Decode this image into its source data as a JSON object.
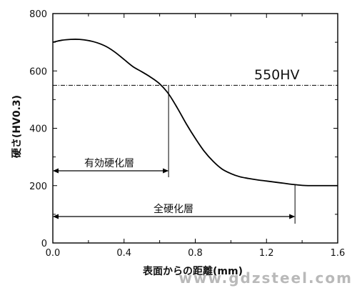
{
  "chart_data": {
    "type": "line",
    "title": "",
    "xlabel": "表面からの距離(mm)",
    "ylabel": "硬さ(HV0.3)",
    "xlim": [
      0.0,
      1.6
    ],
    "ylim": [
      0,
      800
    ],
    "x_ticks": [
      "0.0",
      "0.4",
      "0.8",
      "1.2",
      "1.6"
    ],
    "y_ticks": [
      "0",
      "200",
      "400",
      "600",
      "800"
    ],
    "x": [
      0.0,
      0.05,
      0.1,
      0.15,
      0.2,
      0.25,
      0.3,
      0.35,
      0.4,
      0.45,
      0.5,
      0.55,
      0.6,
      0.65,
      0.7,
      0.75,
      0.8,
      0.85,
      0.9,
      0.95,
      1.0,
      1.05,
      1.1,
      1.15,
      1.2,
      1.25,
      1.3,
      1.35,
      1.4,
      1.45,
      1.5,
      1.55,
      1.6
    ],
    "values": [
      700,
      707,
      710,
      710,
      706,
      698,
      685,
      665,
      640,
      615,
      597,
      578,
      555,
      520,
      470,
      415,
      365,
      320,
      285,
      258,
      242,
      231,
      225,
      220,
      216,
      212,
      208,
      204,
      201,
      200,
      200,
      200,
      200
    ],
    "reference_line": {
      "y": 550,
      "label": "550HV"
    },
    "effective_depth": {
      "x": 0.65,
      "label": "有効硬化層"
    },
    "total_depth": {
      "x": 1.36,
      "label": "全硬化層"
    },
    "grid": false
  },
  "watermark": "www.gdzsteel.com"
}
